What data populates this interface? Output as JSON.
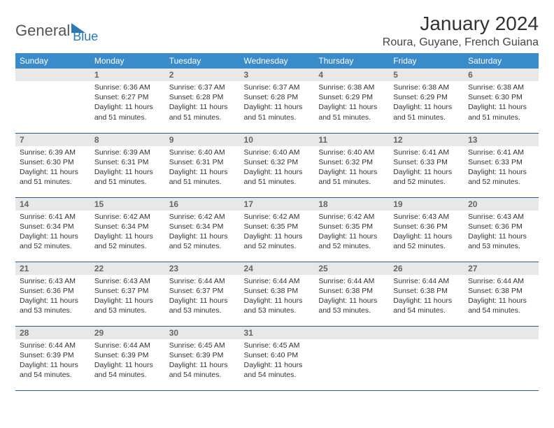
{
  "brand": {
    "general": "General",
    "blue": "Blue"
  },
  "title": "January 2024",
  "subtitle": "Roura, Guyane, French Guiana",
  "theme": {
    "header_bg": "#3a8bc9",
    "header_fg": "#ffffff",
    "daynum_bg": "#e8e8e8",
    "daynum_fg": "#666666",
    "row_border": "#2a5a8a",
    "body_bg": "#ffffff",
    "text_color": "#333333",
    "logo_blue": "#2a7ab8",
    "title_fontsize": 28,
    "subtitle_fontsize": 16,
    "body_fontsize": 10.5
  },
  "weekdays": [
    "Sunday",
    "Monday",
    "Tuesday",
    "Wednesday",
    "Thursday",
    "Friday",
    "Saturday"
  ],
  "weeks": [
    [
      {
        "n": "",
        "sr": "",
        "ss": "",
        "dl": ""
      },
      {
        "n": "1",
        "sr": "6:36 AM",
        "ss": "6:27 PM",
        "dl": "11 hours and 51 minutes."
      },
      {
        "n": "2",
        "sr": "6:37 AM",
        "ss": "6:28 PM",
        "dl": "11 hours and 51 minutes."
      },
      {
        "n": "3",
        "sr": "6:37 AM",
        "ss": "6:28 PM",
        "dl": "11 hours and 51 minutes."
      },
      {
        "n": "4",
        "sr": "6:38 AM",
        "ss": "6:29 PM",
        "dl": "11 hours and 51 minutes."
      },
      {
        "n": "5",
        "sr": "6:38 AM",
        "ss": "6:29 PM",
        "dl": "11 hours and 51 minutes."
      },
      {
        "n": "6",
        "sr": "6:38 AM",
        "ss": "6:30 PM",
        "dl": "11 hours and 51 minutes."
      }
    ],
    [
      {
        "n": "7",
        "sr": "6:39 AM",
        "ss": "6:30 PM",
        "dl": "11 hours and 51 minutes."
      },
      {
        "n": "8",
        "sr": "6:39 AM",
        "ss": "6:31 PM",
        "dl": "11 hours and 51 minutes."
      },
      {
        "n": "9",
        "sr": "6:40 AM",
        "ss": "6:31 PM",
        "dl": "11 hours and 51 minutes."
      },
      {
        "n": "10",
        "sr": "6:40 AM",
        "ss": "6:32 PM",
        "dl": "11 hours and 51 minutes."
      },
      {
        "n": "11",
        "sr": "6:40 AM",
        "ss": "6:32 PM",
        "dl": "11 hours and 51 minutes."
      },
      {
        "n": "12",
        "sr": "6:41 AM",
        "ss": "6:33 PM",
        "dl": "11 hours and 52 minutes."
      },
      {
        "n": "13",
        "sr": "6:41 AM",
        "ss": "6:33 PM",
        "dl": "11 hours and 52 minutes."
      }
    ],
    [
      {
        "n": "14",
        "sr": "6:41 AM",
        "ss": "6:34 PM",
        "dl": "11 hours and 52 minutes."
      },
      {
        "n": "15",
        "sr": "6:42 AM",
        "ss": "6:34 PM",
        "dl": "11 hours and 52 minutes."
      },
      {
        "n": "16",
        "sr": "6:42 AM",
        "ss": "6:34 PM",
        "dl": "11 hours and 52 minutes."
      },
      {
        "n": "17",
        "sr": "6:42 AM",
        "ss": "6:35 PM",
        "dl": "11 hours and 52 minutes."
      },
      {
        "n": "18",
        "sr": "6:42 AM",
        "ss": "6:35 PM",
        "dl": "11 hours and 52 minutes."
      },
      {
        "n": "19",
        "sr": "6:43 AM",
        "ss": "6:36 PM",
        "dl": "11 hours and 52 minutes."
      },
      {
        "n": "20",
        "sr": "6:43 AM",
        "ss": "6:36 PM",
        "dl": "11 hours and 53 minutes."
      }
    ],
    [
      {
        "n": "21",
        "sr": "6:43 AM",
        "ss": "6:36 PM",
        "dl": "11 hours and 53 minutes."
      },
      {
        "n": "22",
        "sr": "6:43 AM",
        "ss": "6:37 PM",
        "dl": "11 hours and 53 minutes."
      },
      {
        "n": "23",
        "sr": "6:44 AM",
        "ss": "6:37 PM",
        "dl": "11 hours and 53 minutes."
      },
      {
        "n": "24",
        "sr": "6:44 AM",
        "ss": "6:38 PM",
        "dl": "11 hours and 53 minutes."
      },
      {
        "n": "25",
        "sr": "6:44 AM",
        "ss": "6:38 PM",
        "dl": "11 hours and 53 minutes."
      },
      {
        "n": "26",
        "sr": "6:44 AM",
        "ss": "6:38 PM",
        "dl": "11 hours and 54 minutes."
      },
      {
        "n": "27",
        "sr": "6:44 AM",
        "ss": "6:38 PM",
        "dl": "11 hours and 54 minutes."
      }
    ],
    [
      {
        "n": "28",
        "sr": "6:44 AM",
        "ss": "6:39 PM",
        "dl": "11 hours and 54 minutes."
      },
      {
        "n": "29",
        "sr": "6:44 AM",
        "ss": "6:39 PM",
        "dl": "11 hours and 54 minutes."
      },
      {
        "n": "30",
        "sr": "6:45 AM",
        "ss": "6:39 PM",
        "dl": "11 hours and 54 minutes."
      },
      {
        "n": "31",
        "sr": "6:45 AM",
        "ss": "6:40 PM",
        "dl": "11 hours and 54 minutes."
      },
      {
        "n": "",
        "sr": "",
        "ss": "",
        "dl": ""
      },
      {
        "n": "",
        "sr": "",
        "ss": "",
        "dl": ""
      },
      {
        "n": "",
        "sr": "",
        "ss": "",
        "dl": ""
      }
    ]
  ],
  "labels": {
    "sunrise": "Sunrise:",
    "sunset": "Sunset:",
    "daylight": "Daylight:"
  }
}
